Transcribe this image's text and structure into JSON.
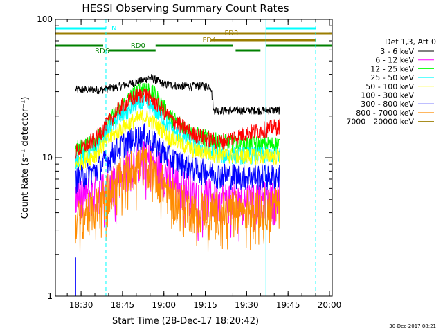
{
  "chart_data": {
    "type": "line",
    "title": "HESSI Observing Summary Count Rates",
    "xlabel": "Start Time (28-Dec-17 18:20:42)",
    "ylabel": "Count Rate (s⁻¹ detector⁻¹)",
    "y_scale": "log",
    "ylim": [
      1,
      100
    ],
    "xlim": [
      "18:20:42",
      "20:01:00"
    ],
    "x_ticks": [
      "18:30",
      "18:45",
      "19:00",
      "19:15",
      "19:30",
      "19:45",
      "20:00"
    ],
    "y_ticks": [
      "1",
      "10",
      "100"
    ],
    "legend_header": "Det 1,3, Att 0",
    "legend_position": "right",
    "grid": false,
    "footer": "30-Dec-2017 08:21",
    "series": [
      {
        "name": "3 - 6 keV",
        "color": "#000000",
        "x": [
          "18:28",
          "18:37",
          "18:42",
          "18:47",
          "18:52",
          "18:55",
          "19:00",
          "19:05",
          "19:10",
          "19:17",
          "19:18",
          "19:25",
          "19:33",
          "19:40",
          "19:42"
        ],
        "values": [
          31,
          31,
          32,
          34,
          36,
          38,
          34,
          33,
          33,
          33,
          22,
          22,
          22,
          22,
          22
        ]
      },
      {
        "name": "6 - 12 keV",
        "color": "#ff00ff",
        "x": [
          "18:28",
          "18:35",
          "18:40",
          "18:45",
          "18:50",
          "18:53",
          "18:57",
          "19:02",
          "19:10",
          "19:20",
          "19:30",
          "19:36",
          "19:42"
        ],
        "values": [
          5.2,
          5.6,
          6.5,
          8,
          9.5,
          10,
          9,
          7.2,
          5.6,
          5,
          5,
          5,
          5
        ]
      },
      {
        "name": "12 - 25 keV",
        "color": "#00ff00",
        "x": [
          "18:28",
          "18:35",
          "18:40",
          "18:45",
          "18:50",
          "18:53",
          "18:57",
          "19:02",
          "19:10",
          "19:20",
          "19:30",
          "19:36",
          "19:42"
        ],
        "values": [
          11.5,
          13,
          18,
          24,
          30,
          33,
          28,
          20,
          15,
          13,
          12.5,
          12.5,
          12.5
        ]
      },
      {
        "name": "25 - 50 keV",
        "color": "#00ffff",
        "x": [
          "18:28",
          "18:35",
          "18:40",
          "18:45",
          "18:50",
          "18:53",
          "18:57",
          "19:02",
          "19:10",
          "19:20",
          "19:30",
          "19:36",
          "19:42"
        ],
        "values": [
          9.5,
          11,
          16,
          20.5,
          24,
          25,
          22,
          16.5,
          12.5,
          10.5,
          10.5,
          10.5,
          10.5
        ]
      },
      {
        "name": "50 - 100 keV",
        "color": "#ffff00",
        "x": [
          "18:28",
          "18:35",
          "18:40",
          "18:45",
          "18:50",
          "18:53",
          "18:57",
          "19:02",
          "19:10",
          "19:20",
          "19:30",
          "19:36",
          "19:42"
        ],
        "values": [
          9,
          10.5,
          13.5,
          16.5,
          19,
          20,
          17.5,
          14,
          11.5,
          10.5,
          10.3,
          10.3,
          10.3
        ]
      },
      {
        "name": "100 - 300 keV",
        "color": "#ff0000",
        "x": [
          "18:28",
          "18:35",
          "18:40",
          "18:45",
          "18:50",
          "18:53",
          "18:57",
          "19:02",
          "19:10",
          "19:20",
          "19:30",
          "19:36",
          "19:42"
        ],
        "values": [
          11,
          13.5,
          18,
          24,
          28,
          29,
          25,
          19.5,
          15,
          13,
          15,
          16,
          17
        ]
      },
      {
        "name": "300 - 800 keV",
        "color": "#0000ff",
        "x": [
          "18:28",
          "18:35",
          "18:40",
          "18:45",
          "18:50",
          "18:53",
          "18:57",
          "19:02",
          "19:10",
          "19:20",
          "19:30",
          "19:36",
          "19:42"
        ],
        "values": [
          7,
          8,
          10,
          12.5,
          14,
          14.5,
          12.5,
          10,
          8.4,
          7.6,
          7.4,
          7.4,
          7.4
        ]
      },
      {
        "name": "800 - 7000 keV",
        "color": "#ff8c00",
        "x": [
          "18:28",
          "18:35",
          "18:40",
          "18:45",
          "18:50",
          "18:53",
          "18:57",
          "19:02",
          "19:10",
          "19:20",
          "19:30",
          "19:36",
          "19:42"
        ],
        "values": [
          3.6,
          4.4,
          5.8,
          7.5,
          9,
          9.2,
          7.8,
          5.5,
          4.3,
          4.2,
          4.4,
          4.5,
          4.5
        ]
      },
      {
        "name": "7000 - 20000 keV",
        "color": "#9b7d00",
        "x": [],
        "values": []
      }
    ],
    "annotations": [
      {
        "label": "N",
        "color": "#00ffff",
        "segments": [
          [
            "18:20:42",
            "18:39"
          ],
          [
            "19:37",
            "19:55"
          ]
        ]
      },
      {
        "label": "FD3",
        "color": "#9b7d00",
        "segments": [
          [
            "18:20:42",
            "19:17"
          ],
          [
            "19:17",
            "20:01"
          ]
        ]
      },
      {
        "label": "FD4",
        "color": "#9b7d00",
        "segments": [
          [
            "19:17",
            "19:55"
          ]
        ]
      },
      {
        "label": "RD0",
        "color": "#008000",
        "segments": [
          [
            "18:20:42",
            "18:38"
          ],
          [
            "18:57",
            "19:25"
          ],
          [
            "19:37",
            "20:01"
          ]
        ]
      },
      {
        "label": "RD6",
        "color": "#008000",
        "segments": [
          [
            "18:40",
            "18:57"
          ],
          [
            "19:26",
            "19:35"
          ]
        ]
      }
    ],
    "marker_lines": [
      {
        "time": "18:39",
        "color": "#00ffff",
        "style": "dashed"
      },
      {
        "time": "19:37",
        "color": "#00ffff",
        "style": "solid"
      },
      {
        "time": "19:55",
        "color": "#00ffff",
        "style": "dashed"
      }
    ]
  }
}
